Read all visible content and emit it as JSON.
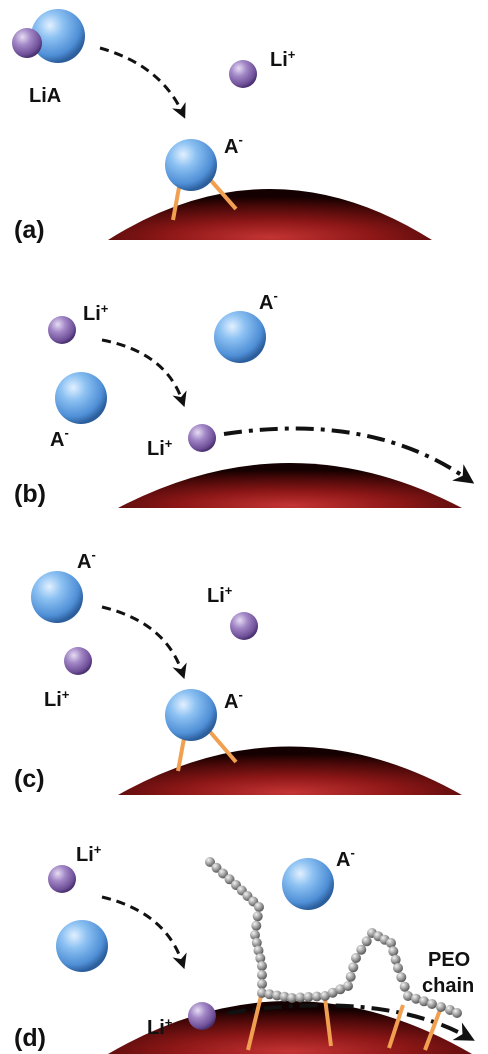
{
  "panels": [
    {
      "label": "(a)",
      "labels": {
        "lia": "LiA",
        "li": "Li",
        "li_sup": "+",
        "a": "A",
        "a_sup": "-"
      }
    },
    {
      "label": "(b)",
      "labels": {
        "li_top": "Li",
        "li_top_sup": "+",
        "a_top": "A",
        "a_top_sup": "-",
        "a_left": "A",
        "a_left_sup": "-",
        "li_surface": "Li",
        "li_surface_sup": "+"
      }
    },
    {
      "label": "(c)",
      "labels": {
        "a_top": "A",
        "a_top_sup": "-",
        "li_right": "Li",
        "li_right_sup": "+",
        "li_left": "Li",
        "li_left_sup": "+",
        "a_surface": "A",
        "a_surface_sup": "-"
      }
    },
    {
      "label": "(d)",
      "labels": {
        "li_top": "Li",
        "li_top_sup": "+",
        "a_top": "A",
        "a_top_sup": "-",
        "li_surface": "Li",
        "li_surface_sup": "+",
        "peo_line1": "PEO",
        "peo_line2": "chain"
      }
    }
  ],
  "colors": {
    "anion": "#5a9ee0",
    "cation": "#8e6fb0",
    "particle": "#6b0f0f",
    "bond": "#f0a050",
    "chain": "#8c8c8c"
  }
}
